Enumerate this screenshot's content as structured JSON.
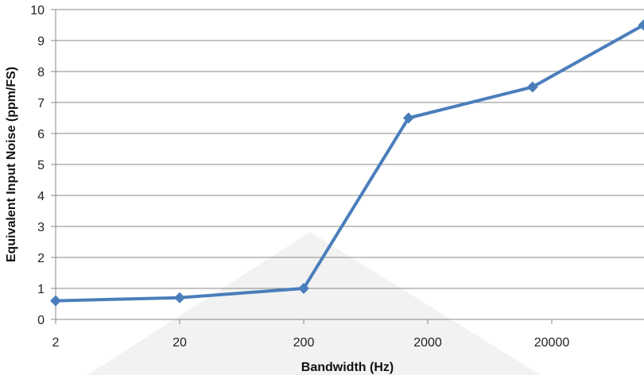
{
  "chart_data": {
    "type": "line",
    "title": "",
    "xlabel": "Bandwidth (Hz)",
    "ylabel": "Equivalent Input Noise (ppm/FS)",
    "x_scale": "log",
    "xlim": [
      2,
      200000
    ],
    "ylim": [
      0,
      10
    ],
    "x_ticks": [
      "2",
      "20",
      "200",
      "2000",
      "20000"
    ],
    "y_ticks": [
      "0",
      "1",
      "2",
      "3",
      "4",
      "5",
      "6",
      "7",
      "8",
      "9",
      "10"
    ],
    "grid": "horizontal",
    "legend": "none",
    "series": [
      {
        "color": "#4a7ebb",
        "marker": "diamond",
        "x": [
          2,
          20,
          200,
          1400,
          14000,
          110000
        ],
        "y": [
          0.6,
          0.7,
          1.0,
          6.5,
          7.5,
          9.5
        ]
      }
    ]
  }
}
